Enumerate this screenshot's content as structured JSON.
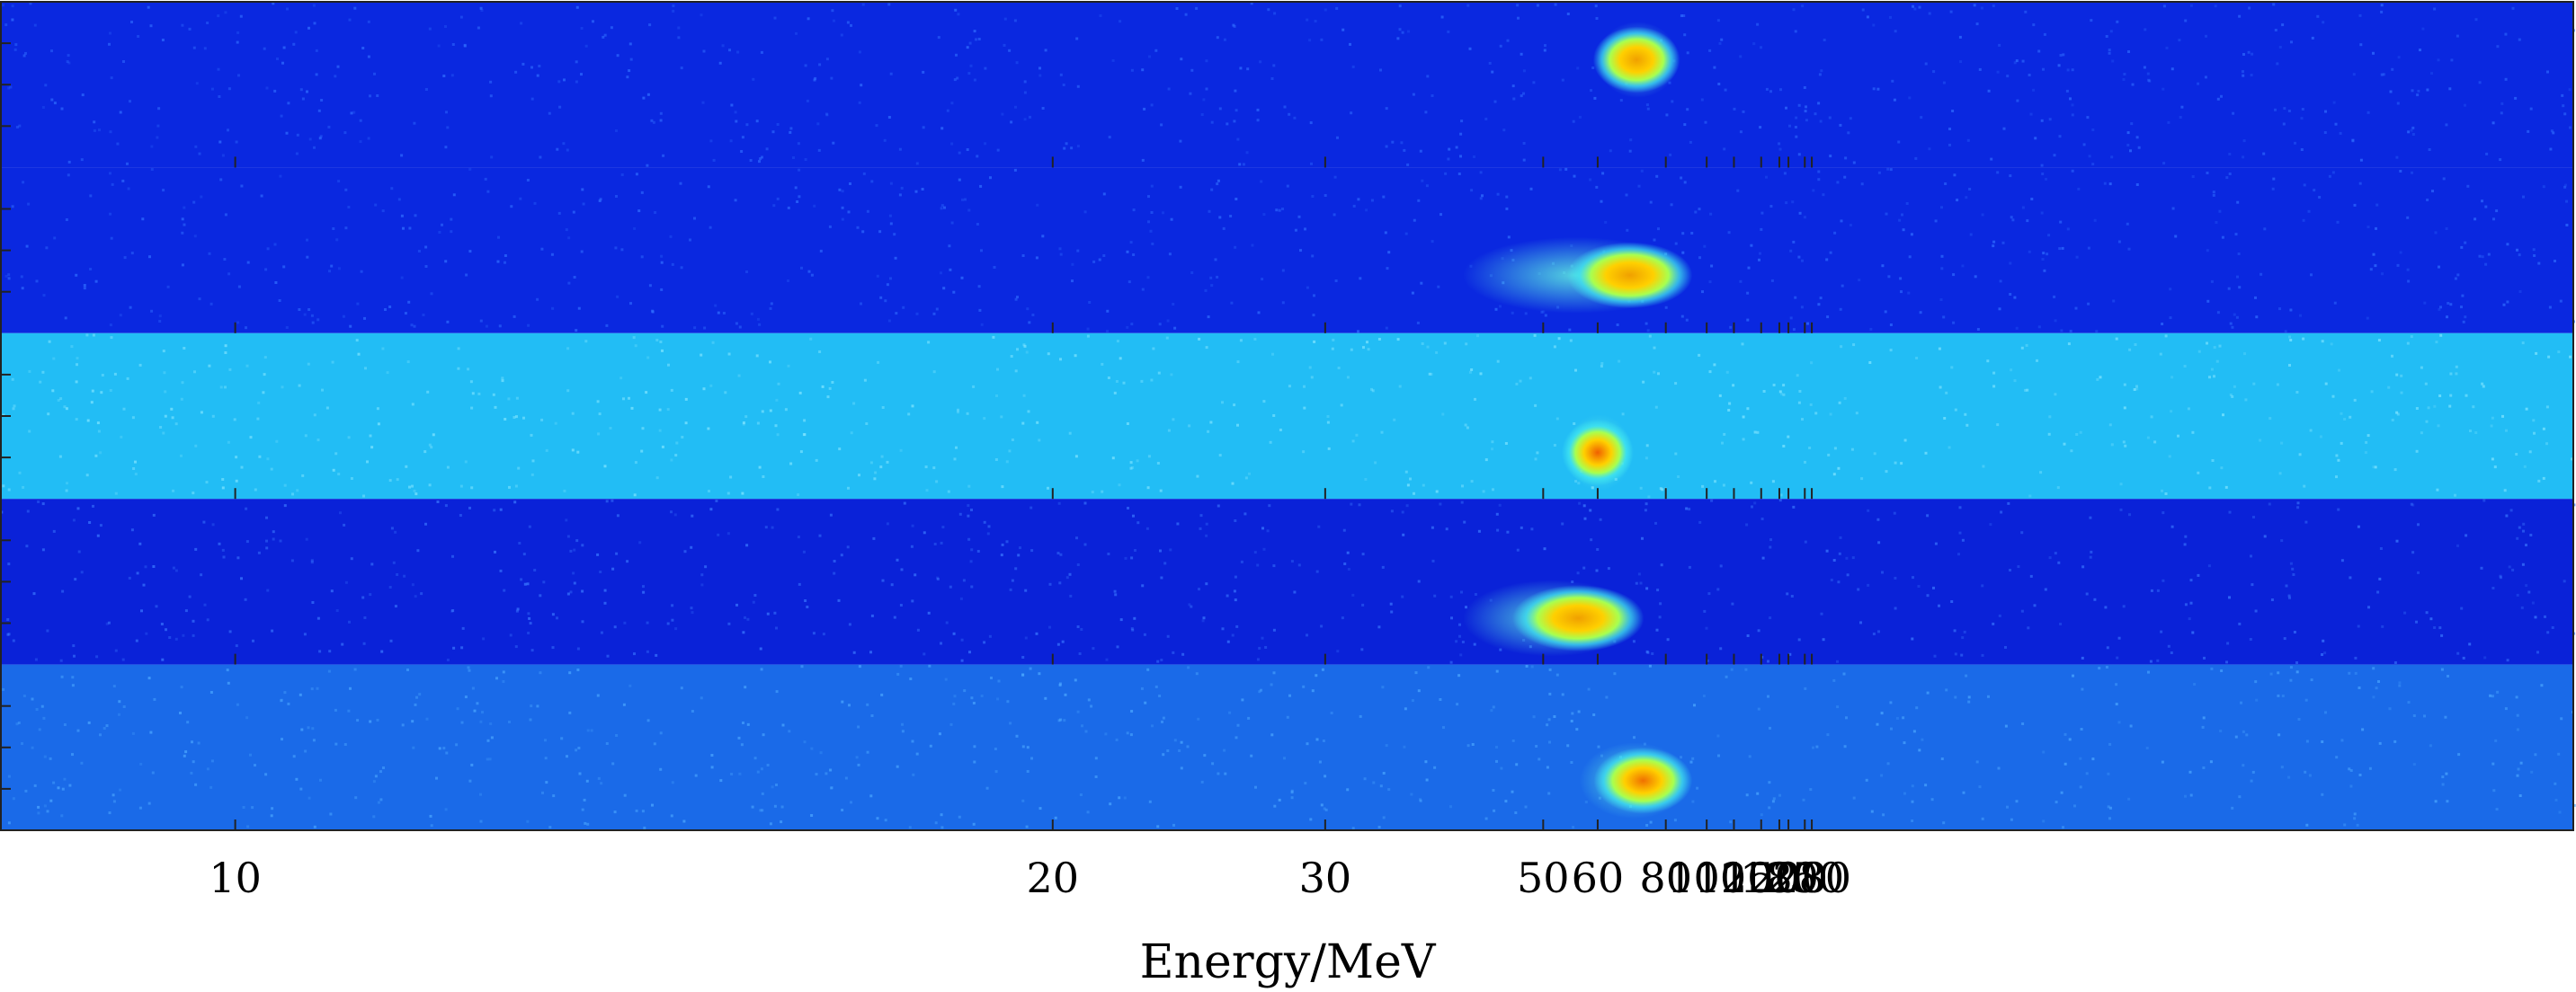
{
  "chart_data": {
    "type": "heatmap",
    "title": "",
    "xlabel": "Energy/MeV",
    "ylabel": "",
    "x_scale": "reciprocal",
    "x_ticks": [
      10,
      20,
      30,
      50,
      60,
      80,
      100,
      120,
      150,
      180,
      200,
      250,
      280
    ],
    "x_tick_labels": [
      "10",
      "20",
      "30",
      "50",
      "60",
      "80",
      "100",
      "120",
      "150",
      "180",
      "200",
      "250",
      "280"
    ],
    "colormap": "jet",
    "grid": false,
    "legend": "none",
    "panels": [
      {
        "background_color": "#0a28e0",
        "noise_color": "#2f6cff",
        "spots": [
          {
            "peak_energy": 70,
            "low_energy_tail": 64,
            "high_energy_edge": 78,
            "row_position": 0.35,
            "peak_color": "#f0a000"
          }
        ]
      },
      {
        "background_color": "#0a28e0",
        "noise_color": "#2f6cff",
        "spots": [
          {
            "peak_energy": 68,
            "low_energy_tail": 42,
            "high_energy_edge": 82,
            "row_position": 0.65,
            "peak_color": "#f0a000"
          }
        ]
      },
      {
        "background_color": "#22bdf5",
        "noise_color": "#7fe4ff",
        "spots": [
          {
            "peak_energy": 60,
            "low_energy_tail": 57,
            "high_energy_edge": 64,
            "row_position": 0.72,
            "peak_color": "#f06000"
          }
        ]
      },
      {
        "background_color": "#0a22d8",
        "noise_color": "#3a78ff",
        "spots": [
          {
            "peak_energy": 56,
            "low_energy_tail": 42,
            "high_energy_edge": 66,
            "row_position": 0.72,
            "peak_color": "#f0a000"
          }
        ]
      },
      {
        "background_color": "#1a6ae8",
        "noise_color": "#4aa6ff",
        "spots": [
          {
            "peak_energy": 72,
            "low_energy_tail": 60,
            "high_energy_edge": 82,
            "row_position": 0.7,
            "peak_color": "#f07000"
          }
        ]
      }
    ]
  }
}
